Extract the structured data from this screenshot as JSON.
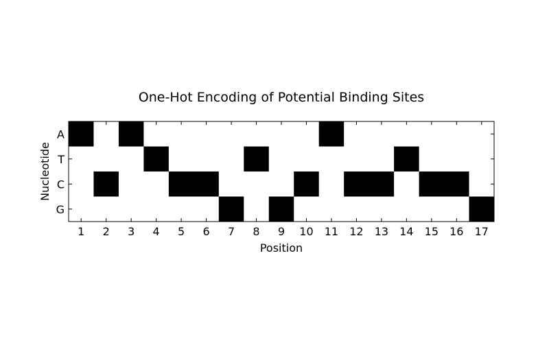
{
  "chart_data": {
    "type": "heatmap",
    "title": "One-Hot Encoding of Potential Binding Sites",
    "xlabel": "Position",
    "ylabel": "Nucleotide",
    "x": [
      "1",
      "2",
      "3",
      "4",
      "5",
      "6",
      "7",
      "8",
      "9",
      "10",
      "11",
      "12",
      "13",
      "14",
      "15",
      "16",
      "17"
    ],
    "y": [
      "A",
      "T",
      "C",
      "G"
    ],
    "sequence": [
      "A",
      "C",
      "A",
      "T",
      "C",
      "C",
      "G",
      "T",
      "G",
      "C",
      "A",
      "C",
      "C",
      "T",
      "C",
      "C",
      "G"
    ],
    "colors": {
      "on": "#000000",
      "off": "#ffffff"
    },
    "grid": false
  }
}
